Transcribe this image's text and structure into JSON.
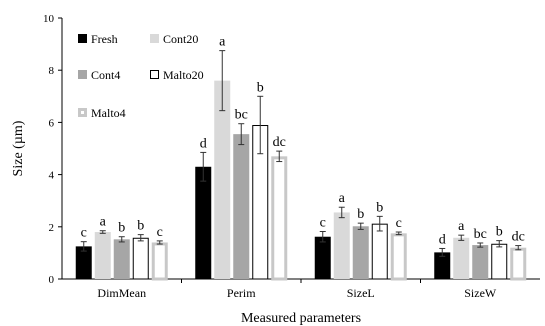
{
  "chart_data": {
    "type": "bar",
    "title": "",
    "xlabel": "Measured parameters",
    "ylabel": "Size (µm)",
    "ylim": [
      0,
      10
    ],
    "yticks": [
      0,
      2,
      4,
      6,
      8,
      10
    ],
    "grid": false,
    "legend_position": "top-left",
    "categories": [
      "DimMean",
      "Perim",
      "SizeL",
      "SizeW"
    ],
    "series": [
      {
        "name": "Fresh",
        "color": "#000000",
        "style": "solid",
        "values": [
          1.25,
          4.3,
          1.62,
          1.02
        ],
        "errors": [
          0.18,
          0.55,
          0.2,
          0.15
        ],
        "letters": [
          "c",
          "d",
          "c",
          "d"
        ]
      },
      {
        "name": "Cont20",
        "color": "#d9d9d9",
        "style": "solid",
        "values": [
          1.8,
          7.6,
          2.55,
          1.58
        ],
        "errors": [
          0.05,
          1.15,
          0.2,
          0.1
        ],
        "letters": [
          "a",
          "a",
          "a",
          "a"
        ]
      },
      {
        "name": "Cont4",
        "color": "#a6a6a6",
        "style": "solid",
        "values": [
          1.52,
          5.55,
          2.02,
          1.3
        ],
        "errors": [
          0.1,
          0.4,
          0.12,
          0.08
        ],
        "letters": [
          "b",
          "bc",
          "b",
          "bc"
        ]
      },
      {
        "name": "Malto20",
        "color": "#ffffff",
        "style": "outline",
        "values": [
          1.58,
          5.9,
          2.12,
          1.35
        ],
        "errors": [
          0.12,
          1.1,
          0.28,
          0.12
        ],
        "letters": [
          "b",
          "b",
          "b",
          "b"
        ]
      },
      {
        "name": "Malto4",
        "color": "#c8c8c8",
        "style": "thick-outline",
        "values": [
          1.4,
          4.7,
          1.75,
          1.2
        ],
        "errors": [
          0.06,
          0.2,
          0.05,
          0.08
        ],
        "letters": [
          "c",
          "dc",
          "c",
          "dc"
        ]
      }
    ]
  }
}
